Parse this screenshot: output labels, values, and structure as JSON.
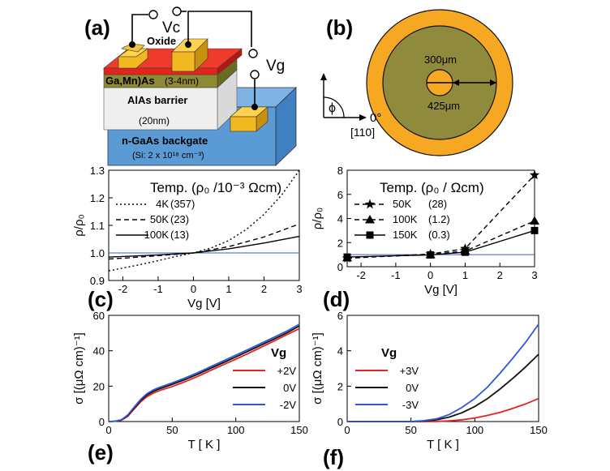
{
  "figure": {
    "panel_labels": {
      "a": "(a)",
      "b": "(b)",
      "c": "(c)",
      "d": "(d)",
      "e": "(e)",
      "f": "(f)"
    },
    "panel_a": {
      "vc": "Vc",
      "vg": "Vg",
      "oxide": "Oxide",
      "gamnas": "Ga,Mn)As",
      "gamnas_thickness": "(3-4nm)",
      "barrier": "AlAs barrier",
      "barrier_thickness": "(20nm)",
      "backgate": "n-GaAs backgate",
      "doping": "(Si: 2 x 10¹⁸ cm⁻³)"
    },
    "panel_b": {
      "inner_diameter": "300μm",
      "outer_diameter": "425μm",
      "angle_symbol": "ϕ",
      "zero_deg": "0°",
      "direction": "[110]"
    },
    "colors": {
      "oxide_red": "#e5231b",
      "gamnas_olive": "#8d8a33",
      "barrier_gray": "#efefef",
      "substrate_blue": "#5b9bd5",
      "contact_gold": "#f2b820",
      "ring_orange": "#f7a823",
      "disk_olive": "#8f8a3c",
      "line_blue": "#3a5bd6",
      "curve_red": "#e3231f",
      "curve_blue": "#2e57d9"
    }
  },
  "chart_data": [
    {
      "id": "c",
      "type": "line",
      "xlabel": "Vg [V]",
      "ylabel": "ρ/ρ₀",
      "xlim": [
        -2.4,
        3
      ],
      "ylim": [
        0.9,
        1.3
      ],
      "xticks": [
        -2,
        -1,
        0,
        1,
        2,
        3
      ],
      "yticks": [
        0.9,
        1.0,
        1.1,
        1.2,
        1.3
      ],
      "ytick_labels": [
        "0.9",
        "1.0",
        "1.1",
        "1.2",
        "1.3"
      ],
      "legend_title": "Temp.  (ρ₀ /10⁻³ Ωcm)",
      "reference_line": 1.0,
      "series": [
        {
          "name": "4K",
          "value": "(357)",
          "style": "dotted",
          "x": [
            -2.4,
            -2,
            -1.5,
            -1,
            -0.5,
            0,
            0.5,
            1,
            1.5,
            2,
            2.5,
            3
          ],
          "y": [
            0.935,
            0.945,
            0.958,
            0.972,
            0.987,
            1.0,
            1.018,
            1.045,
            1.085,
            1.14,
            1.21,
            1.3
          ]
        },
        {
          "name": "50K",
          "value": "(23)",
          "style": "dashed",
          "x": [
            -2.4,
            -2,
            -1,
            0,
            1,
            2,
            3
          ],
          "y": [
            0.978,
            0.981,
            0.99,
            1.0,
            1.023,
            1.058,
            1.105
          ]
        },
        {
          "name": "100K",
          "value": "(13)",
          "style": "solid",
          "x": [
            -2.4,
            -2,
            -1,
            0,
            1,
            2,
            3
          ],
          "y": [
            0.985,
            0.987,
            0.993,
            1.0,
            1.015,
            1.036,
            1.06
          ]
        }
      ]
    },
    {
      "id": "d",
      "type": "line",
      "xlabel": "Vg [V]",
      "ylabel": "ρ/ρ₀",
      "xlim": [
        -2.4,
        3
      ],
      "ylim": [
        0,
        8
      ],
      "xticks": [
        -2,
        -1,
        0,
        1,
        2,
        3
      ],
      "yticks": [
        0,
        2,
        4,
        6,
        8
      ],
      "ytick_labels": [
        "0",
        "2",
        "4",
        "6",
        "8"
      ],
      "legend_title": "Temp.  (ρ₀ / Ωcm)",
      "reference_line": 1.0,
      "series": [
        {
          "name": "50K",
          "value": "(28)",
          "style": "dashed",
          "marker": "star",
          "x": [
            -2.4,
            0,
            1,
            3
          ],
          "y": [
            0.7,
            1.05,
            1.5,
            7.6
          ]
        },
        {
          "name": "100K",
          "value": "(1.2)",
          "style": "dashed",
          "marker": "triangle",
          "x": [
            -2.4,
            0,
            1,
            3
          ],
          "y": [
            0.75,
            1.0,
            1.3,
            3.8
          ]
        },
        {
          "name": "150K",
          "value": "(0.3)",
          "style": "solid",
          "marker": "square",
          "x": [
            -2.4,
            0,
            1,
            3
          ],
          "y": [
            0.8,
            0.98,
            1.2,
            3.0
          ]
        }
      ]
    },
    {
      "id": "e",
      "type": "line",
      "xlabel": "T [ K ]",
      "ylabel": "σ [(μΩ cm)⁻¹]",
      "xlim": [
        0,
        150
      ],
      "ylim": [
        0,
        60
      ],
      "xticks": [
        0,
        50,
        100,
        150
      ],
      "yticks": [
        0,
        20,
        40,
        60
      ],
      "ytick_labels": [
        "0",
        "20",
        "40",
        "60"
      ],
      "legend_title": "Vg",
      "series": [
        {
          "name": "+2V",
          "color": "#e3231f",
          "x": [
            0,
            5,
            10,
            15,
            20,
            25,
            30,
            35,
            40,
            50,
            60,
            70,
            80,
            90,
            100,
            110,
            120,
            130,
            140,
            150
          ],
          "y": [
            0,
            0.2,
            0.8,
            3,
            7,
            11,
            14,
            16,
            17.5,
            19.8,
            22.5,
            25.5,
            28.8,
            32,
            35.2,
            38.5,
            42,
            45.5,
            49,
            52.5
          ]
        },
        {
          "name": "0V",
          "color": "#111111",
          "x": [
            0,
            5,
            10,
            15,
            20,
            25,
            30,
            35,
            40,
            50,
            60,
            70,
            80,
            90,
            100,
            110,
            120,
            130,
            140,
            150
          ],
          "y": [
            0,
            0.2,
            0.9,
            3.4,
            7.6,
            11.8,
            15,
            17,
            18.5,
            21,
            23.7,
            26.7,
            30,
            33.2,
            36.5,
            39.8,
            43.2,
            46.6,
            50,
            54
          ]
        },
        {
          "name": "-2V",
          "color": "#2e57d9",
          "x": [
            0,
            5,
            10,
            15,
            20,
            25,
            30,
            35,
            40,
            50,
            60,
            70,
            80,
            90,
            100,
            110,
            120,
            130,
            140,
            150
          ],
          "y": [
            0,
            0.2,
            1,
            3.7,
            8.1,
            12.4,
            15.7,
            17.8,
            19.3,
            21.8,
            24.6,
            27.6,
            30.9,
            34.2,
            37.5,
            40.8,
            44.2,
            47.6,
            51,
            55
          ]
        }
      ]
    },
    {
      "id": "f",
      "type": "line",
      "xlabel": "T [ K ]",
      "ylabel": "σ [(μΩ cm)⁻¹]",
      "xlim": [
        0,
        150
      ],
      "ylim": [
        0,
        6
      ],
      "xticks": [
        0,
        50,
        100,
        150
      ],
      "yticks": [
        0,
        2,
        4,
        6
      ],
      "ytick_labels": [
        "0",
        "2",
        "4",
        "6"
      ],
      "legend_title": "Vg",
      "series": [
        {
          "name": "+3V",
          "color": "#e3231f",
          "x": [
            0,
            60,
            70,
            80,
            90,
            100,
            110,
            120,
            130,
            140,
            150
          ],
          "y": [
            0,
            0,
            0.01,
            0.04,
            0.1,
            0.2,
            0.35,
            0.52,
            0.75,
            1.0,
            1.3
          ]
        },
        {
          "name": "0V",
          "color": "#111111",
          "x": [
            0,
            50,
            60,
            70,
            80,
            90,
            100,
            110,
            120,
            130,
            140,
            150
          ],
          "y": [
            0,
            0,
            0.03,
            0.1,
            0.25,
            0.5,
            0.85,
            1.3,
            1.85,
            2.45,
            3.1,
            3.8
          ]
        },
        {
          "name": "-3V",
          "color": "#2e57d9",
          "x": [
            0,
            50,
            60,
            70,
            80,
            90,
            100,
            110,
            120,
            130,
            140,
            150
          ],
          "y": [
            0,
            0,
            0.05,
            0.15,
            0.4,
            0.8,
            1.3,
            1.95,
            2.75,
            3.6,
            4.5,
            5.5
          ]
        }
      ]
    }
  ]
}
